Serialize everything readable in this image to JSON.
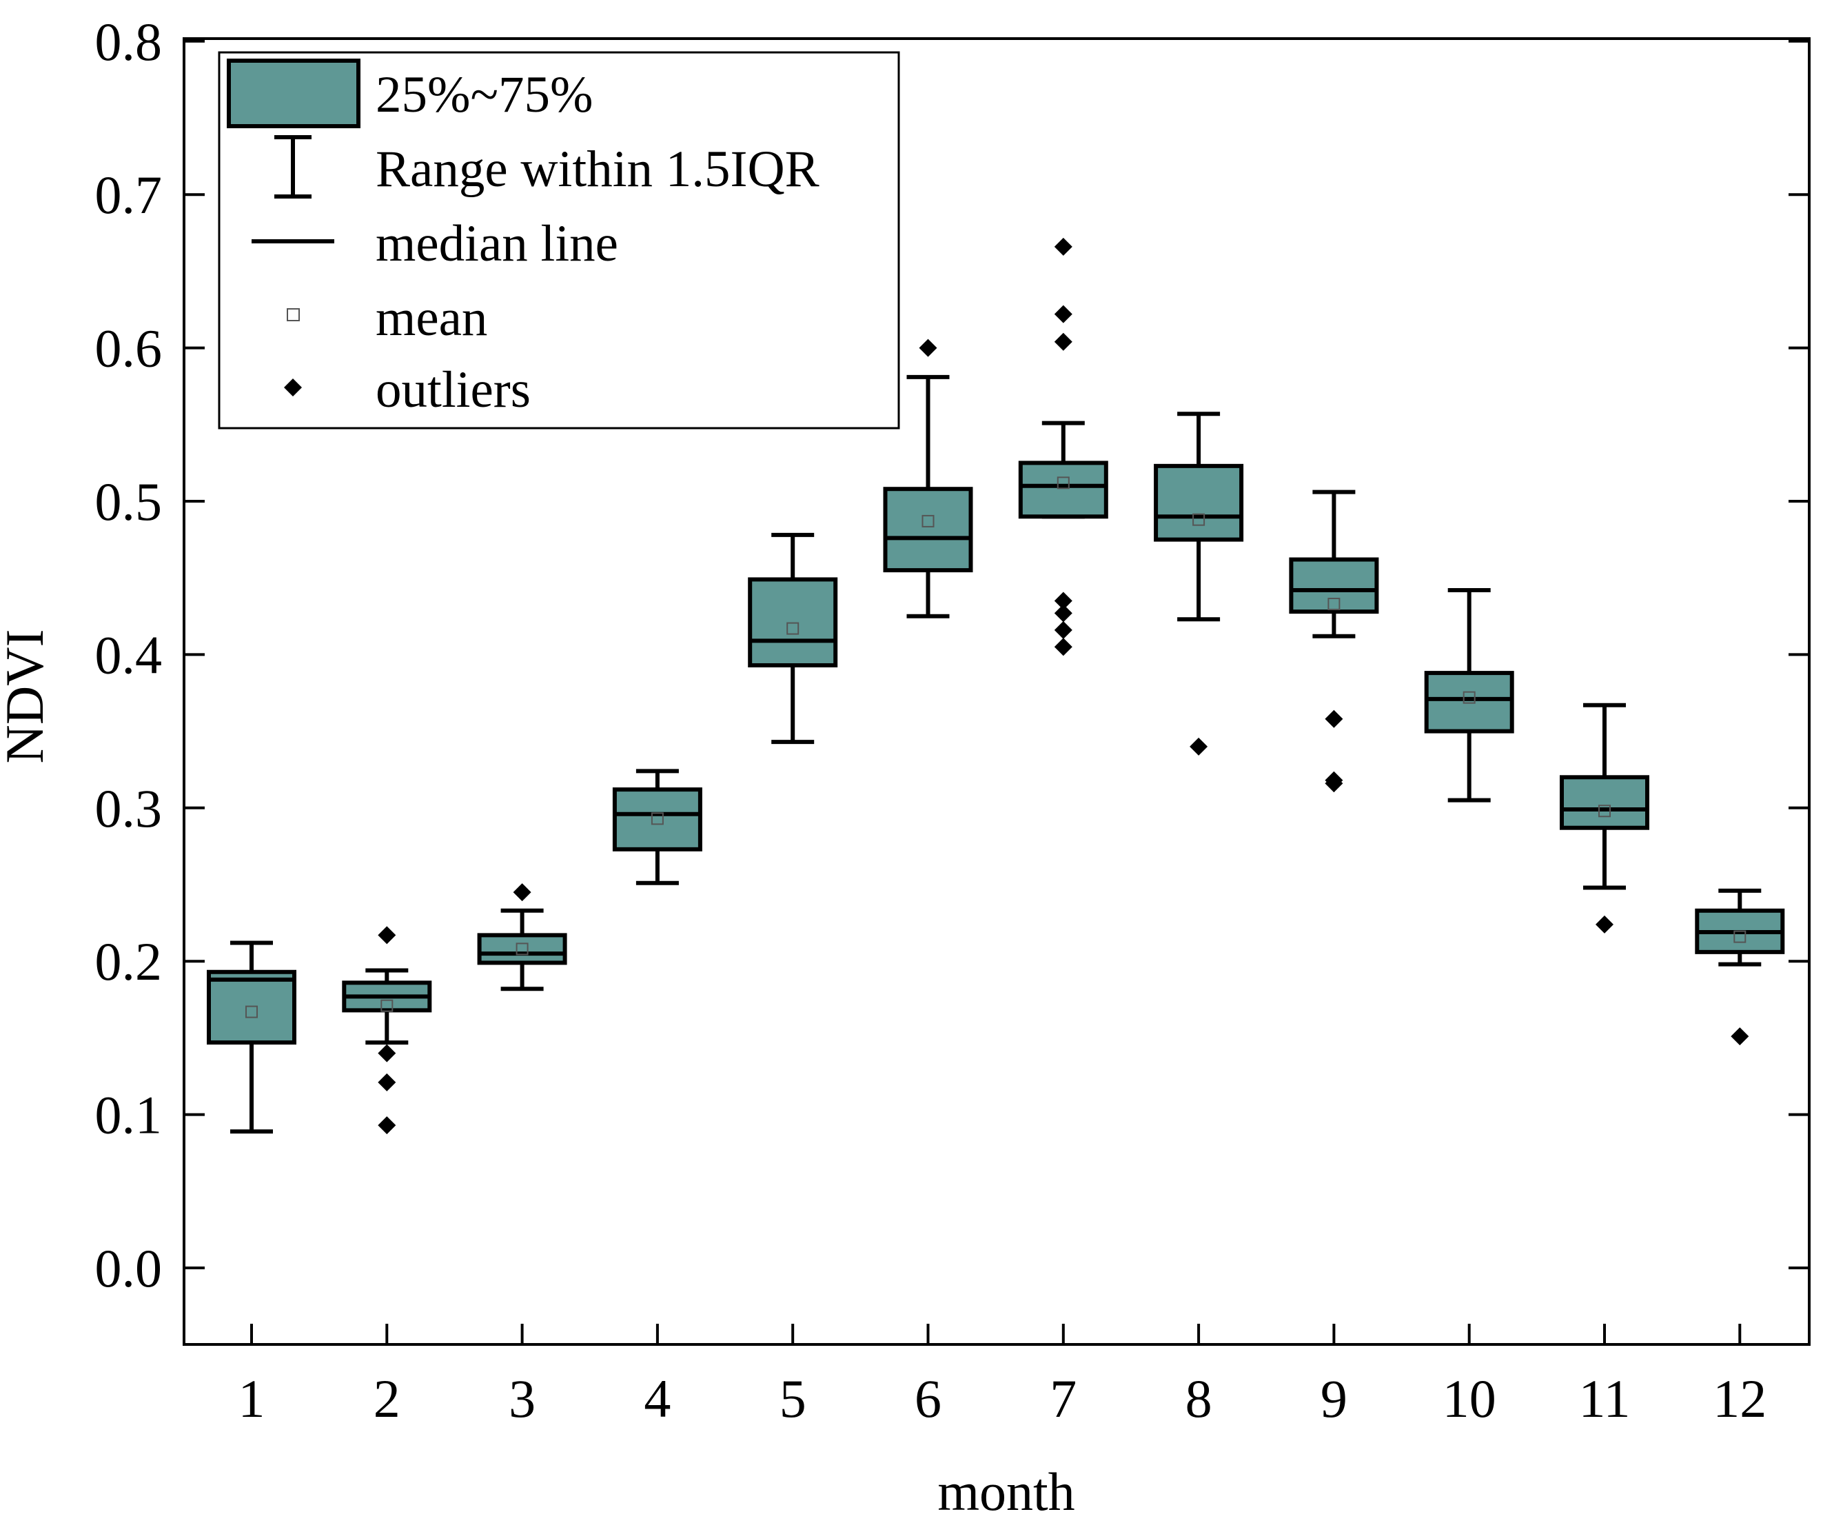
{
  "chart_data": {
    "type": "box",
    "title": "",
    "xlabel": "month",
    "ylabel": "NDVI",
    "ylim": [
      -0.05,
      0.8
    ],
    "yticks": [
      "0.0",
      "0.1",
      "0.2",
      "0.3",
      "0.4",
      "0.5",
      "0.6",
      "0.7",
      "0.8"
    ],
    "categories": [
      "1",
      "2",
      "3",
      "4",
      "5",
      "6",
      "7",
      "8",
      "9",
      "10",
      "11",
      "12"
    ],
    "boxes": [
      {
        "month": "1",
        "q1": 0.147,
        "median": 0.188,
        "q3": 0.193,
        "whisker_low": 0.089,
        "whisker_high": 0.212,
        "mean": 0.167,
        "outliers": []
      },
      {
        "month": "2",
        "q1": 0.168,
        "median": 0.177,
        "q3": 0.186,
        "whisker_low": 0.147,
        "whisker_high": 0.194,
        "mean": 0.171,
        "outliers": [
          0.217,
          0.14,
          0.121,
          0.093
        ]
      },
      {
        "month": "3",
        "q1": 0.199,
        "median": 0.205,
        "q3": 0.217,
        "whisker_low": 0.182,
        "whisker_high": 0.233,
        "mean": 0.208,
        "outliers": [
          0.245
        ]
      },
      {
        "month": "4",
        "q1": 0.273,
        "median": 0.296,
        "q3": 0.312,
        "whisker_low": 0.251,
        "whisker_high": 0.324,
        "mean": 0.293,
        "outliers": []
      },
      {
        "month": "5",
        "q1": 0.393,
        "median": 0.409,
        "q3": 0.449,
        "whisker_low": 0.343,
        "whisker_high": 0.478,
        "mean": 0.417,
        "outliers": []
      },
      {
        "month": "6",
        "q1": 0.455,
        "median": 0.476,
        "q3": 0.508,
        "whisker_low": 0.425,
        "whisker_high": 0.581,
        "mean": 0.487,
        "outliers": [
          0.6
        ]
      },
      {
        "month": "7",
        "q1": 0.49,
        "median": 0.51,
        "q3": 0.525,
        "whisker_low": 0.49,
        "whisker_high": 0.551,
        "mean": 0.512,
        "outliers": [
          0.666,
          0.622,
          0.604,
          0.435,
          0.427,
          0.416,
          0.405
        ]
      },
      {
        "month": "8",
        "q1": 0.475,
        "median": 0.49,
        "q3": 0.523,
        "whisker_low": 0.423,
        "whisker_high": 0.557,
        "mean": 0.488,
        "outliers": [
          0.34
        ]
      },
      {
        "month": "9",
        "q1": 0.428,
        "median": 0.442,
        "q3": 0.462,
        "whisker_low": 0.412,
        "whisker_high": 0.506,
        "mean": 0.433,
        "outliers": [
          0.358,
          0.318,
          0.316
        ]
      },
      {
        "month": "10",
        "q1": 0.35,
        "median": 0.371,
        "q3": 0.388,
        "whisker_low": 0.305,
        "whisker_high": 0.442,
        "mean": 0.372,
        "outliers": []
      },
      {
        "month": "11",
        "q1": 0.287,
        "median": 0.299,
        "q3": 0.32,
        "whisker_low": 0.248,
        "whisker_high": 0.367,
        "mean": 0.298,
        "outliers": [
          0.224
        ]
      },
      {
        "month": "12",
        "q1": 0.206,
        "median": 0.219,
        "q3": 0.233,
        "whisker_low": 0.198,
        "whisker_high": 0.246,
        "mean": 0.216,
        "outliers": [
          0.151
        ]
      }
    ],
    "legend": {
      "position": "top-left",
      "items": [
        {
          "key": "box",
          "label": "25%~75%"
        },
        {
          "key": "whisker",
          "label": "Range within 1.5IQR"
        },
        {
          "key": "median",
          "label": "median line"
        },
        {
          "key": "mean",
          "label": "mean"
        },
        {
          "key": "outlier",
          "label": "outliers"
        }
      ]
    },
    "colors": {
      "box_fill": "#5f9895",
      "stroke": "#000000",
      "mean_marker": "#555555",
      "background": "#ffffff"
    }
  }
}
